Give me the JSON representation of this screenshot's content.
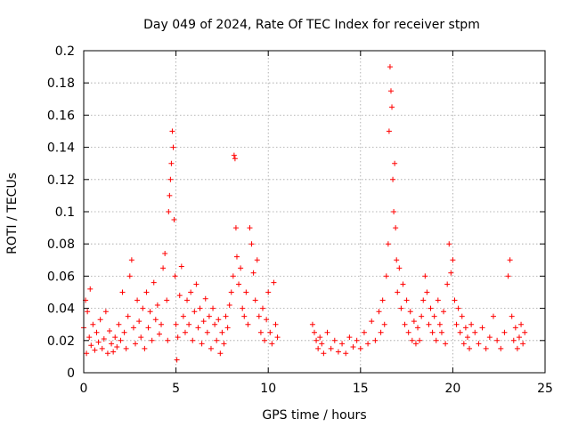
{
  "chart_data": {
    "type": "scatter",
    "title": "Day 049 of 2024, Rate Of TEC Index for receiver stpm",
    "xlabel": "GPS time / hours",
    "ylabel": "ROTI / TECUs",
    "xlim": [
      0,
      25
    ],
    "ylim": [
      0,
      0.2
    ],
    "xticks": [
      0,
      5,
      10,
      15,
      20,
      25
    ],
    "yticks": [
      0,
      0.02,
      0.04,
      0.06,
      0.08,
      0.1,
      0.12,
      0.14,
      0.16,
      0.18,
      0.2
    ],
    "xtick_labels": [
      "0",
      "5",
      "10",
      "15",
      "20",
      "25"
    ],
    "ytick_labels": [
      "0",
      "0.02",
      "0.04",
      "0.06",
      "0.08",
      "0.1",
      "0.12",
      "0.14",
      "0.16",
      "0.18",
      "0.2"
    ],
    "grid": true,
    "marker": "+",
    "series": [
      {
        "name": "ROTI",
        "color": "#ff0000",
        "points": [
          [
            0.0,
            0.028
          ],
          [
            0.1,
            0.045
          ],
          [
            0.15,
            0.012
          ],
          [
            0.2,
            0.038
          ],
          [
            0.3,
            0.022
          ],
          [
            0.35,
            0.052
          ],
          [
            0.4,
            0.017
          ],
          [
            0.5,
            0.03
          ],
          [
            0.6,
            0.014
          ],
          [
            0.7,
            0.025
          ],
          [
            0.8,
            0.019
          ],
          [
            0.9,
            0.033
          ],
          [
            1.0,
            0.015
          ],
          [
            1.1,
            0.021
          ],
          [
            1.2,
            0.038
          ],
          [
            1.3,
            0.012
          ],
          [
            1.4,
            0.026
          ],
          [
            1.5,
            0.018
          ],
          [
            1.6,
            0.013
          ],
          [
            1.7,
            0.022
          ],
          [
            1.8,
            0.016
          ],
          [
            1.9,
            0.03
          ],
          [
            2.0,
            0.02
          ],
          [
            2.1,
            0.05
          ],
          [
            2.2,
            0.025
          ],
          [
            2.3,
            0.015
          ],
          [
            2.4,
            0.035
          ],
          [
            2.5,
            0.06
          ],
          [
            2.6,
            0.07
          ],
          [
            2.7,
            0.028
          ],
          [
            2.8,
            0.018
          ],
          [
            2.9,
            0.045
          ],
          [
            3.0,
            0.032
          ],
          [
            3.1,
            0.022
          ],
          [
            3.2,
            0.04
          ],
          [
            3.3,
            0.015
          ],
          [
            3.4,
            0.05
          ],
          [
            3.5,
            0.028
          ],
          [
            3.6,
            0.038
          ],
          [
            3.7,
            0.02
          ],
          [
            3.8,
            0.056
          ],
          [
            3.9,
            0.033
          ],
          [
            4.0,
            0.042
          ],
          [
            4.1,
            0.024
          ],
          [
            4.2,
            0.03
          ],
          [
            4.3,
            0.065
          ],
          [
            4.4,
            0.074
          ],
          [
            4.5,
            0.045
          ],
          [
            4.55,
            0.02
          ],
          [
            4.6,
            0.1
          ],
          [
            4.65,
            0.11
          ],
          [
            4.7,
            0.12
          ],
          [
            4.75,
            0.13
          ],
          [
            4.8,
            0.15
          ],
          [
            4.85,
            0.14
          ],
          [
            4.9,
            0.095
          ],
          [
            4.95,
            0.06
          ],
          [
            5.0,
            0.03
          ],
          [
            5.05,
            0.008
          ],
          [
            5.1,
            0.022
          ],
          [
            5.2,
            0.048
          ],
          [
            5.3,
            0.066
          ],
          [
            5.4,
            0.035
          ],
          [
            5.5,
            0.025
          ],
          [
            5.6,
            0.045
          ],
          [
            5.7,
            0.03
          ],
          [
            5.8,
            0.05
          ],
          [
            5.9,
            0.02
          ],
          [
            6.0,
            0.038
          ],
          [
            6.1,
            0.055
          ],
          [
            6.2,
            0.028
          ],
          [
            6.3,
            0.04
          ],
          [
            6.4,
            0.018
          ],
          [
            6.5,
            0.032
          ],
          [
            6.6,
            0.046
          ],
          [
            6.7,
            0.025
          ],
          [
            6.8,
            0.035
          ],
          [
            6.9,
            0.015
          ],
          [
            7.0,
            0.04
          ],
          [
            7.1,
            0.03
          ],
          [
            7.2,
            0.02
          ],
          [
            7.3,
            0.033
          ],
          [
            7.4,
            0.012
          ],
          [
            7.5,
            0.025
          ],
          [
            7.6,
            0.018
          ],
          [
            7.7,
            0.035
          ],
          [
            7.8,
            0.028
          ],
          [
            7.9,
            0.042
          ],
          [
            8.0,
            0.05
          ],
          [
            8.1,
            0.06
          ],
          [
            8.15,
            0.135
          ],
          [
            8.2,
            0.133
          ],
          [
            8.25,
            0.09
          ],
          [
            8.3,
            0.072
          ],
          [
            8.4,
            0.055
          ],
          [
            8.5,
            0.065
          ],
          [
            8.6,
            0.04
          ],
          [
            8.7,
            0.035
          ],
          [
            8.8,
            0.05
          ],
          [
            8.9,
            0.03
          ],
          [
            9.0,
            0.09
          ],
          [
            9.1,
            0.08
          ],
          [
            9.2,
            0.062
          ],
          [
            9.3,
            0.045
          ],
          [
            9.4,
            0.07
          ],
          [
            9.5,
            0.035
          ],
          [
            9.6,
            0.025
          ],
          [
            9.7,
            0.04
          ],
          [
            9.8,
            0.02
          ],
          [
            9.9,
            0.033
          ],
          [
            10.0,
            0.05
          ],
          [
            10.1,
            0.025
          ],
          [
            10.2,
            0.018
          ],
          [
            10.3,
            0.056
          ],
          [
            10.4,
            0.03
          ],
          [
            10.5,
            0.022
          ],
          [
            12.4,
            0.03
          ],
          [
            12.5,
            0.025
          ],
          [
            12.6,
            0.02
          ],
          [
            12.7,
            0.015
          ],
          [
            12.8,
            0.022
          ],
          [
            12.9,
            0.018
          ],
          [
            13.0,
            0.012
          ],
          [
            13.2,
            0.025
          ],
          [
            13.4,
            0.015
          ],
          [
            13.6,
            0.02
          ],
          [
            13.8,
            0.013
          ],
          [
            14.0,
            0.018
          ],
          [
            14.2,
            0.012
          ],
          [
            14.4,
            0.022
          ],
          [
            14.6,
            0.016
          ],
          [
            14.8,
            0.02
          ],
          [
            15.0,
            0.015
          ],
          [
            15.2,
            0.025
          ],
          [
            15.4,
            0.018
          ],
          [
            15.6,
            0.032
          ],
          [
            15.8,
            0.02
          ],
          [
            16.0,
            0.038
          ],
          [
            16.1,
            0.025
          ],
          [
            16.2,
            0.045
          ],
          [
            16.3,
            0.03
          ],
          [
            16.4,
            0.06
          ],
          [
            16.5,
            0.08
          ],
          [
            16.55,
            0.15
          ],
          [
            16.6,
            0.19
          ],
          [
            16.65,
            0.175
          ],
          [
            16.7,
            0.165
          ],
          [
            16.75,
            0.12
          ],
          [
            16.8,
            0.1
          ],
          [
            16.85,
            0.13
          ],
          [
            16.9,
            0.09
          ],
          [
            16.95,
            0.07
          ],
          [
            17.0,
            0.05
          ],
          [
            17.1,
            0.065
          ],
          [
            17.2,
            0.04
          ],
          [
            17.3,
            0.055
          ],
          [
            17.4,
            0.03
          ],
          [
            17.5,
            0.045
          ],
          [
            17.6,
            0.025
          ],
          [
            17.7,
            0.038
          ],
          [
            17.8,
            0.02
          ],
          [
            17.9,
            0.032
          ],
          [
            18.0,
            0.018
          ],
          [
            18.1,
            0.028
          ],
          [
            18.2,
            0.02
          ],
          [
            18.3,
            0.035
          ],
          [
            18.4,
            0.045
          ],
          [
            18.5,
            0.06
          ],
          [
            18.6,
            0.05
          ],
          [
            18.7,
            0.03
          ],
          [
            18.8,
            0.04
          ],
          [
            18.9,
            0.025
          ],
          [
            19.0,
            0.035
          ],
          [
            19.1,
            0.02
          ],
          [
            19.2,
            0.045
          ],
          [
            19.3,
            0.03
          ],
          [
            19.4,
            0.025
          ],
          [
            19.5,
            0.038
          ],
          [
            19.6,
            0.018
          ],
          [
            19.7,
            0.055
          ],
          [
            19.8,
            0.08
          ],
          [
            19.9,
            0.062
          ],
          [
            20.0,
            0.07
          ],
          [
            20.1,
            0.045
          ],
          [
            20.2,
            0.03
          ],
          [
            20.3,
            0.04
          ],
          [
            20.4,
            0.025
          ],
          [
            20.5,
            0.035
          ],
          [
            20.6,
            0.018
          ],
          [
            20.7,
            0.028
          ],
          [
            20.8,
            0.022
          ],
          [
            20.9,
            0.015
          ],
          [
            21.0,
            0.03
          ],
          [
            21.2,
            0.025
          ],
          [
            21.4,
            0.018
          ],
          [
            21.6,
            0.028
          ],
          [
            21.8,
            0.015
          ],
          [
            22.0,
            0.022
          ],
          [
            22.2,
            0.035
          ],
          [
            22.4,
            0.02
          ],
          [
            22.6,
            0.015
          ],
          [
            22.8,
            0.025
          ],
          [
            23.0,
            0.06
          ],
          [
            23.1,
            0.07
          ],
          [
            23.2,
            0.035
          ],
          [
            23.3,
            0.02
          ],
          [
            23.4,
            0.028
          ],
          [
            23.5,
            0.015
          ],
          [
            23.6,
            0.022
          ],
          [
            23.7,
            0.03
          ],
          [
            23.8,
            0.018
          ],
          [
            23.9,
            0.025
          ]
        ]
      }
    ]
  }
}
